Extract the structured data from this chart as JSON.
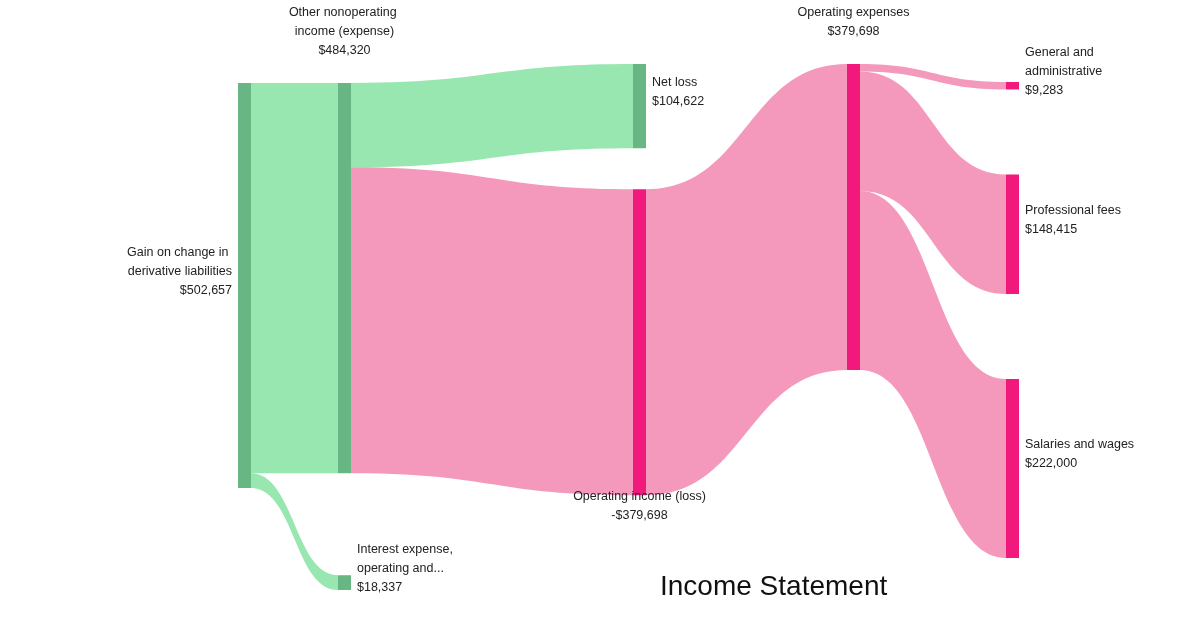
{
  "chart_data": {
    "type": "other",
    "title": "Income Statement",
    "categories": [
      "Gain on change in derivative liabilities",
      "Other nonoperating income (expense)",
      "Interest expense, operating and...",
      "Net loss",
      "Operating income (loss)",
      "Operating expenses",
      "General and administrative",
      "Professional fees",
      "Salaries and wages"
    ],
    "values": [
      502657,
      null,
      null,
      null,
      null,
      null,
      null,
      null,
      null
    ],
    "value_labels": [
      "$502,657",
      null,
      null,
      null,
      null,
      null,
      null,
      null,
      null
    ],
    "colors": [
      "#68b684",
      "#68b684",
      "#68b684",
      "#68b684",
      "#f2197d",
      "#f2197d",
      "#f2197d",
      "#f2197d",
      "#f2197d"
    ],
    "series": [
      {
        "values": [
          null,
          484320,
          18337,
          null,
          null,
          null,
          null,
          null,
          null
        ],
        "value_labels": [
          null,
          "$484,320",
          "$18,337",
          null,
          null,
          null,
          null,
          null,
          null
        ],
        "colors": [
          null,
          "#98e6b0",
          "#98e6b0",
          null,
          null,
          null,
          null,
          null,
          null
        ]
      },
      {
        "values": [
          null,
          null,
          null,
          104622,
          -379698,
          null,
          null,
          null,
          null
        ],
        "value_labels": [
          null,
          null,
          null,
          "$104,622",
          "-$379,698",
          null,
          null,
          null,
          null
        ],
        "colors": [
          null,
          null,
          null,
          "#98e6b0",
          "#f499bb",
          null,
          null,
          null,
          null
        ]
      },
      {
        "values": [
          null,
          null,
          null,
          null,
          null,
          null,
          null,
          null,
          null
        ]
      },
      {
        "values": [
          null,
          null,
          null,
          null,
          null,
          null,
          null,
          null,
          null
        ]
      },
      {
        "values": [
          null,
          null,
          null,
          null,
          null,
          379698,
          null,
          null,
          null
        ],
        "value_labels": [
          null,
          null,
          null,
          null,
          null,
          "$379,698",
          null,
          null,
          null
        ],
        "colors": [
          null,
          null,
          null,
          null,
          null,
          "#f499bb",
          null,
          null,
          null
        ]
      },
      {
        "values": [
          null,
          null,
          null,
          null,
          null,
          null,
          9283,
          148415,
          222000
        ],
        "value_labels": [
          null,
          null,
          null,
          null,
          null,
          null,
          "$9,283",
          "$148,415",
          "$222,000"
        ],
        "colors": [
          null,
          null,
          null,
          null,
          null,
          null,
          "#f499bb",
          "#f499bb",
          "#f499bb"
        ]
      },
      {
        "values": [
          null,
          null,
          null,
          null,
          null,
          null,
          null,
          null,
          null
        ]
      },
      {
        "values": [
          null,
          null,
          null,
          null,
          null,
          null,
          null,
          null,
          null
        ]
      },
      {
        "values": [
          null,
          null,
          null,
          null,
          null,
          null,
          null,
          null,
          null
        ]
      }
    ]
  }
}
